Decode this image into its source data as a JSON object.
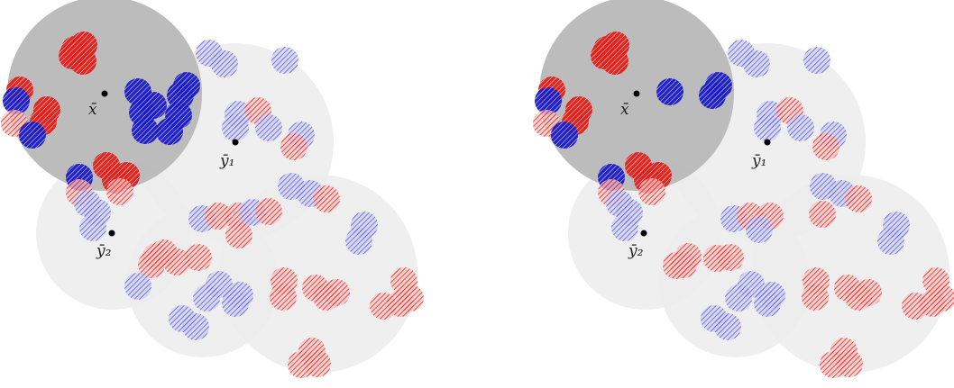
{
  "labels": {
    "x_bar": "x̄",
    "y1_bar": "ȳ₁",
    "y2_bar": "ȳ₂"
  },
  "colors": {
    "red": "#e0201c",
    "blue": "#2020d0",
    "disk_dark": "#b8b8b8",
    "disk_light": "#ececec",
    "center_dot": "#000000"
  },
  "panels": [
    "left",
    "right"
  ]
}
